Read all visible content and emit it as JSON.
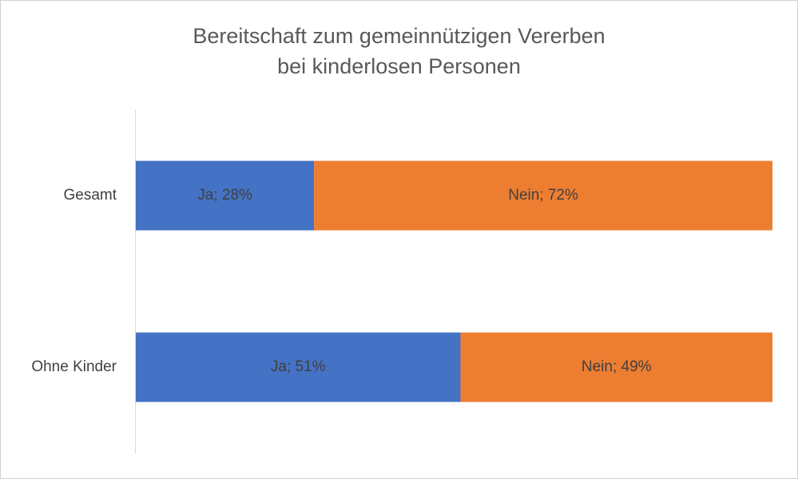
{
  "chart_data": {
    "type": "bar",
    "orientation": "horizontal",
    "stacked": true,
    "title_lines": [
      "Bereitschaft zum gemeinnützigen Vererben",
      "bei kinderlosen Personen"
    ],
    "categories": [
      "Gesamt",
      "Ohne Kinder"
    ],
    "series": [
      {
        "name": "Ja",
        "color": "#4472c4",
        "values": [
          28,
          51
        ],
        "labels": [
          "Ja; 28%",
          "Ja; 51%"
        ]
      },
      {
        "name": "Nein",
        "color": "#ed7d31",
        "values": [
          72,
          49
        ],
        "labels": [
          "Nein; 72%",
          "Nein; 49%"
        ]
      }
    ],
    "xlim": [
      0,
      100
    ],
    "grid": false,
    "legend": "none"
  }
}
